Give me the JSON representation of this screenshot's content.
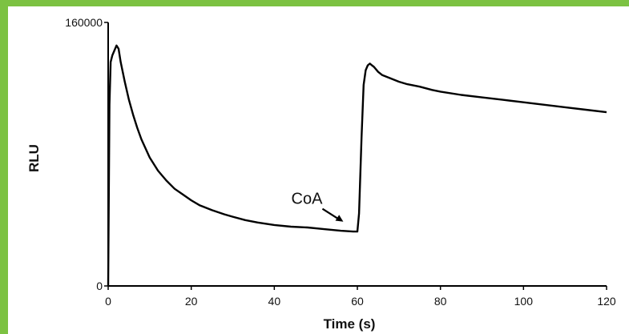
{
  "colors": {
    "border": "#7cc242",
    "background": "#ffffff",
    "line": "#000000"
  },
  "chart_data": {
    "type": "line",
    "title": "",
    "xlabel": "Time (s)",
    "ylabel": "RLU",
    "xlim": [
      0,
      120
    ],
    "ylim": [
      0,
      160000
    ],
    "x_ticks": [
      0,
      20,
      40,
      60,
      80,
      100,
      120
    ],
    "y_ticks": [
      0,
      160000
    ],
    "grid": false,
    "annotations": [
      {
        "text": "CoA",
        "x": 57,
        "y": 41000,
        "arrow": true
      }
    ],
    "series": [
      {
        "x": [
          0,
          0.3,
          0.6,
          1.0,
          1.5,
          2.0,
          2.5,
          3,
          4,
          5,
          6,
          7,
          8,
          10,
          12,
          14,
          16,
          18,
          20,
          22,
          25,
          28,
          30,
          33,
          36,
          40,
          44,
          48,
          52,
          56,
          59,
          59.5,
          60,
          60.4,
          61,
          61.5,
          62,
          62.5,
          63,
          63.5,
          64,
          65,
          66,
          68,
          70,
          72,
          75,
          78,
          80,
          85,
          90,
          95,
          100,
          105,
          110,
          115,
          120
        ],
        "y": [
          0,
          110000,
          136000,
          140000,
          143000,
          146000,
          144000,
          136000,
          124000,
          113000,
          104000,
          96000,
          89000,
          78000,
          70000,
          64000,
          59000,
          55500,
          52000,
          49000,
          46000,
          43500,
          42000,
          40000,
          38500,
          37000,
          36000,
          35500,
          34500,
          33500,
          33000,
          33000,
          33000,
          44000,
          90000,
          122000,
          131000,
          134000,
          135000,
          134000,
          133000,
          130000,
          128000,
          126000,
          124000,
          122500,
          121000,
          119000,
          118000,
          116000,
          114500,
          113000,
          111500,
          110000,
          108500,
          107000,
          105500
        ]
      }
    ]
  }
}
